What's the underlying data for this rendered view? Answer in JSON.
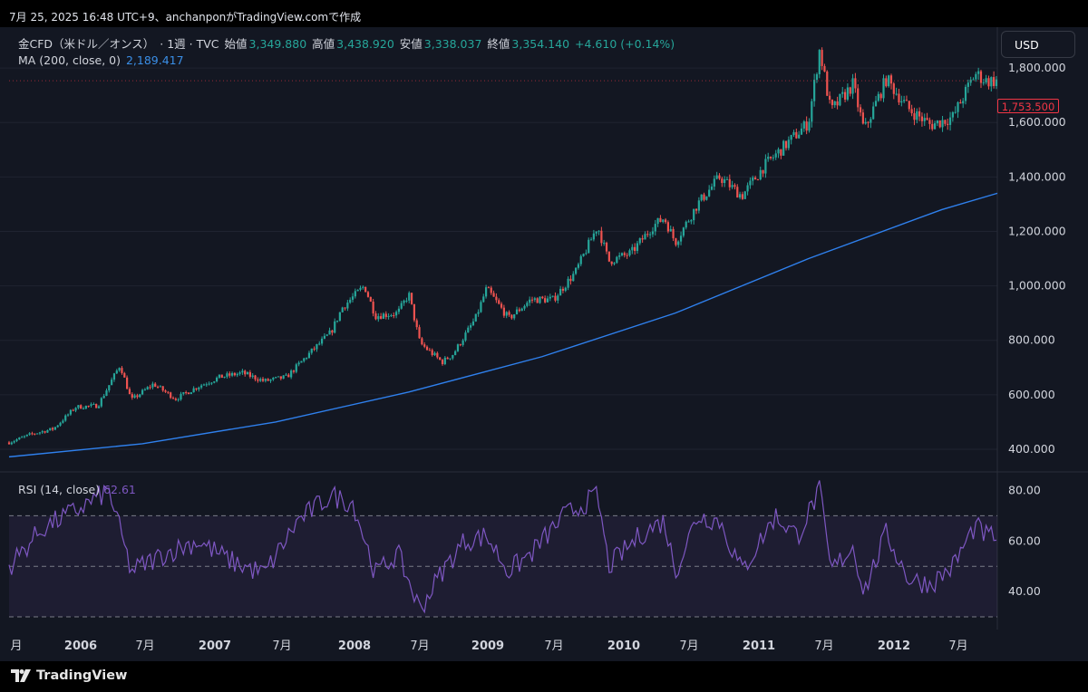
{
  "header": {
    "timestamp": "7月 25, 2025 16:48 UTC+9、anchanponがTradingView.comで作成"
  },
  "legend": {
    "symbol": "金CFD（米ドル／オンス）",
    "meta": "· 1週 · TVC",
    "open_label": "始値",
    "open_value": "3,349.880",
    "high_label": "高値",
    "high_value": "3,438.920",
    "low_label": "安値",
    "low_value": "3,338.037",
    "close_label": "終値",
    "close_value": "3,354.140",
    "change": "+4.610 (+0.14%)",
    "ma_label": "MA (200, close, 0)",
    "ma_value": "2,189.417",
    "rsi_label": "RSI (14, close)",
    "rsi_value": "62.61"
  },
  "currency_button": "USD",
  "price_tag": "1,753.500",
  "footer": {
    "brand": "TradingView"
  },
  "colors": {
    "up": "#26a69a",
    "down": "#ef5350",
    "ma": "#2f80ed",
    "rsi": "#7e57c2",
    "bg": "#131722"
  },
  "chart_data": [
    {
      "type": "candlestick",
      "title": "金CFD（米ドル／オンス） 1週",
      "y_ticks": [
        "400.000",
        "600.000",
        "800.000",
        "1,000.000",
        "1,200.000",
        "1,400.000",
        "1,600.000",
        "1,800.000"
      ],
      "x_ticks": [
        "月",
        "2006",
        "7月",
        "2007",
        "7月",
        "2008",
        "7月",
        "2009",
        "7月",
        "2010",
        "7月",
        "2011",
        "7月",
        "2012",
        "7月"
      ],
      "x_range": [
        "2005-07",
        "2012-12"
      ],
      "ylim": [
        320,
        1950
      ],
      "close_path": [
        [
          "2005-07",
          425
        ],
        [
          "2005-09",
          455
        ],
        [
          "2005-11",
          475
        ],
        [
          "2006-01",
          555
        ],
        [
          "2006-03",
          560
        ],
        [
          "2006-05",
          710
        ],
        [
          "2006-06",
          580
        ],
        [
          "2006-08",
          640
        ],
        [
          "2006-10",
          585
        ],
        [
          "2006-12",
          630
        ],
        [
          "2007-02",
          665
        ],
        [
          "2007-04",
          680
        ],
        [
          "2007-06",
          650
        ],
        [
          "2007-08",
          665
        ],
        [
          "2007-10",
          750
        ],
        [
          "2007-12",
          830
        ],
        [
          "2008-01",
          920
        ],
        [
          "2008-03",
          1000
        ],
        [
          "2008-04",
          890
        ],
        [
          "2008-06",
          900
        ],
        [
          "2008-07",
          970
        ],
        [
          "2008-08",
          790
        ],
        [
          "2008-10",
          720
        ],
        [
          "2008-11",
          750
        ],
        [
          "2009-01",
          880
        ],
        [
          "2009-02",
          990
        ],
        [
          "2009-04",
          880
        ],
        [
          "2009-06",
          950
        ],
        [
          "2009-08",
          950
        ],
        [
          "2009-10",
          1050
        ],
        [
          "2009-12",
          1220
        ],
        [
          "2010-01",
          1090
        ],
        [
          "2010-03",
          1120
        ],
        [
          "2010-05",
          1220
        ],
        [
          "2010-06",
          1250
        ],
        [
          "2010-07",
          1160
        ],
        [
          "2010-09",
          1300
        ],
        [
          "2010-11",
          1400
        ],
        [
          "2011-01",
          1330
        ],
        [
          "2011-03",
          1440
        ],
        [
          "2011-05",
          1520
        ],
        [
          "2011-07",
          1600
        ],
        [
          "2011-08",
          1870
        ],
        [
          "2011-09",
          1640
        ],
        [
          "2011-11",
          1740
        ],
        [
          "2011-12",
          1570
        ],
        [
          "2012-02",
          1760
        ],
        [
          "2012-04",
          1650
        ],
        [
          "2012-06",
          1590
        ],
        [
          "2012-08",
          1620
        ],
        [
          "2012-10",
          1780
        ],
        [
          "2012-11",
          1753
        ]
      ]
    },
    {
      "type": "line",
      "series": [
        {
          "name": "MA (200, close, 0)",
          "points": [
            [
              "2005-07",
              372
            ],
            [
              "2006-07",
              420
            ],
            [
              "2007-07",
              500
            ],
            [
              "2008-07",
              610
            ],
            [
              "2009-07",
              740
            ],
            [
              "2010-07",
              900
            ],
            [
              "2011-07",
              1100
            ],
            [
              "2012-07",
              1280
            ],
            [
              "2012-12",
              1340
            ]
          ]
        }
      ]
    },
    {
      "type": "line",
      "series": [
        {
          "name": "RSI (14, close)",
          "points": [
            [
              "2005-07",
              50
            ],
            [
              "2005-10",
              65
            ],
            [
              "2006-01",
              72
            ],
            [
              "2006-04",
              80
            ],
            [
              "2006-06",
              48
            ],
            [
              "2006-09",
              55
            ],
            [
              "2006-12",
              60
            ],
            [
              "2007-03",
              52
            ],
            [
              "2007-06",
              47
            ],
            [
              "2007-09",
              68
            ],
            [
              "2007-12",
              78
            ],
            [
              "2008-02",
              75
            ],
            [
              "2008-04",
              47
            ],
            [
              "2008-06",
              55
            ],
            [
              "2008-08",
              33
            ],
            [
              "2008-10",
              48
            ],
            [
              "2008-12",
              60
            ],
            [
              "2009-02",
              62
            ],
            [
              "2009-04",
              48
            ],
            [
              "2009-06",
              55
            ],
            [
              "2009-09",
              70
            ],
            [
              "2009-12",
              78
            ],
            [
              "2010-01",
              50
            ],
            [
              "2010-04",
              63
            ],
            [
              "2010-06",
              68
            ],
            [
              "2010-07",
              48
            ],
            [
              "2010-09",
              70
            ],
            [
              "2010-11",
              68
            ],
            [
              "2011-01",
              48
            ],
            [
              "2011-04",
              70
            ],
            [
              "2011-06",
              62
            ],
            [
              "2011-08",
              80
            ],
            [
              "2011-09",
              48
            ],
            [
              "2011-11",
              58
            ],
            [
              "2011-12",
              40
            ],
            [
              "2012-02",
              63
            ],
            [
              "2012-04",
              45
            ],
            [
              "2012-06",
              43
            ],
            [
              "2012-08",
              50
            ],
            [
              "2012-10",
              66
            ],
            [
              "2012-11",
              62
            ]
          ]
        }
      ],
      "y_ticks": [
        "40.00",
        "60.00",
        "80.00"
      ],
      "ylim": [
        25,
        87
      ],
      "bands": [
        30,
        50,
        70
      ]
    }
  ]
}
